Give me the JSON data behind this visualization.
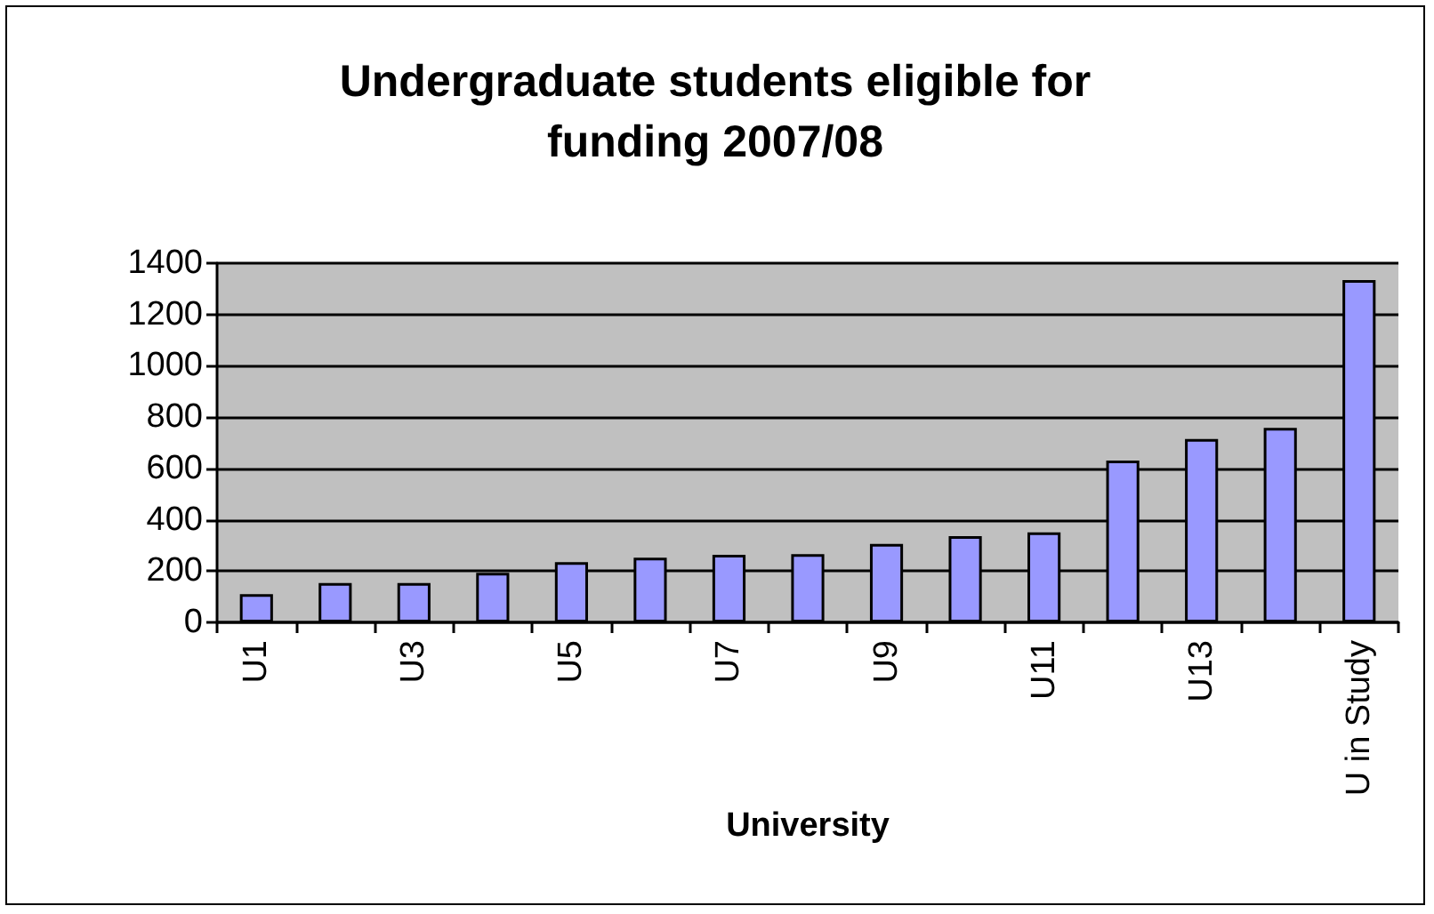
{
  "chart_data": {
    "type": "bar",
    "title": "Undergraduate students eligible for\nfunding 2007/08",
    "xlabel": "University",
    "categories": [
      "U1",
      null,
      "U3",
      null,
      "U5",
      null,
      "U7",
      null,
      "U9",
      null,
      "U11",
      null,
      "U13",
      null,
      "U in Study"
    ],
    "values": [
      110,
      153,
      153,
      193,
      235,
      252,
      263,
      266,
      306,
      336,
      351,
      631,
      715,
      758,
      1334
    ],
    "color": "#9999ff",
    "ylim": [
      0,
      1400
    ],
    "yticks": [
      0,
      200,
      400,
      600,
      800,
      1000,
      1200,
      1400
    ],
    "grid": "y"
  }
}
